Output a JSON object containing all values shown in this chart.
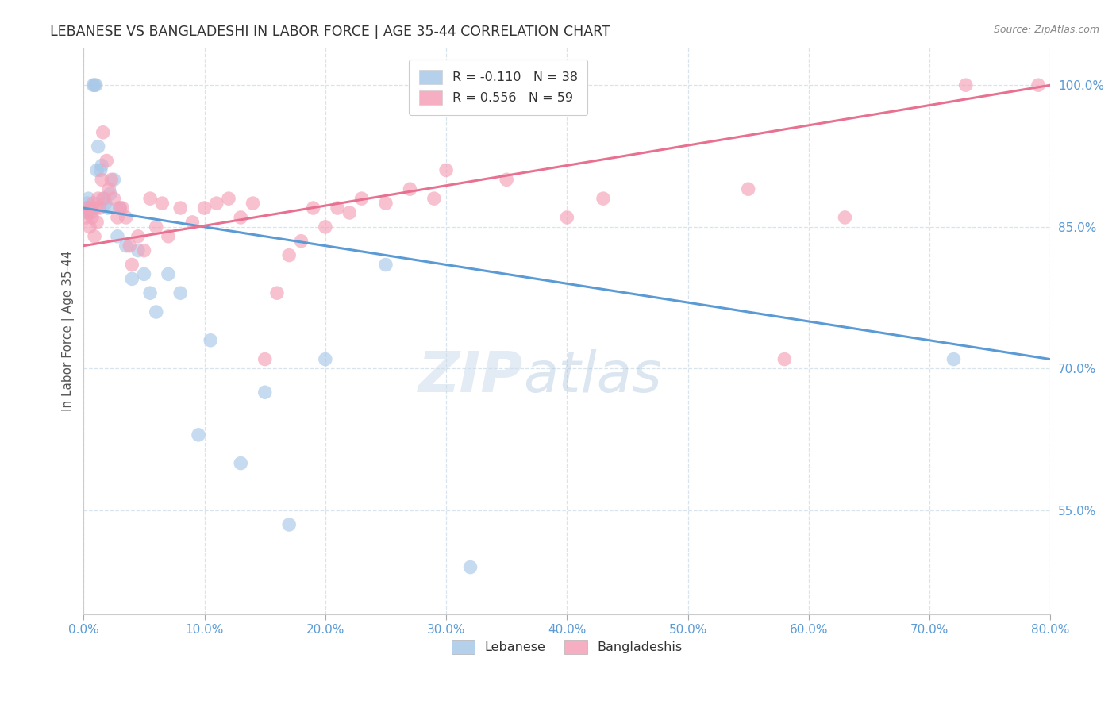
{
  "title": "LEBANESE VS BANGLADESHI IN LABOR FORCE | AGE 35-44 CORRELATION CHART",
  "source": "Source: ZipAtlas.com",
  "ylabel": "In Labor Force | Age 35-44",
  "watermark_zip": "ZIP",
  "watermark_atlas": "atlas",
  "xlim": [
    0.0,
    80.0
  ],
  "ylim": [
    44.0,
    104.0
  ],
  "blue_color": "#a8c8e8",
  "pink_color": "#f4a0b8",
  "blue_line_color": "#5b9bd5",
  "pink_line_color": "#e87090",
  "background_color": "#ffffff",
  "grid_color": "#d8e4ec",
  "blue_line_x0": 0.0,
  "blue_line_y0": 87.0,
  "blue_line_x1": 80.0,
  "blue_line_y1": 71.0,
  "pink_line_x0": 0.0,
  "pink_line_y0": 83.0,
  "pink_line_x1": 80.0,
  "pink_line_y1": 100.0,
  "lebanese_x": [
    0.2,
    0.3,
    0.3,
    0.4,
    0.5,
    0.6,
    0.7,
    0.8,
    0.9,
    1.0,
    1.1,
    1.2,
    1.4,
    1.5,
    1.6,
    1.8,
    2.0,
    2.2,
    2.5,
    2.8,
    3.0,
    3.5,
    4.0,
    4.5,
    5.0,
    5.5,
    6.0,
    7.0,
    8.0,
    9.5,
    10.5,
    13.0,
    15.0,
    17.0,
    20.0,
    25.0,
    32.0,
    72.0
  ],
  "lebanese_y": [
    87.0,
    86.5,
    87.5,
    88.0,
    87.0,
    86.5,
    87.0,
    100.0,
    100.0,
    100.0,
    91.0,
    93.5,
    91.0,
    91.5,
    88.0,
    87.5,
    87.0,
    88.5,
    90.0,
    84.0,
    87.0,
    83.0,
    79.5,
    82.5,
    80.0,
    78.0,
    76.0,
    80.0,
    78.0,
    63.0,
    73.0,
    60.0,
    67.5,
    53.5,
    71.0,
    81.0,
    49.0,
    71.0
  ],
  "bangladeshi_x": [
    0.2,
    0.3,
    0.4,
    0.5,
    0.6,
    0.7,
    0.8,
    0.9,
    1.0,
    1.1,
    1.2,
    1.3,
    1.5,
    1.6,
    1.7,
    1.9,
    2.1,
    2.3,
    2.5,
    2.8,
    3.0,
    3.2,
    3.5,
    3.8,
    4.0,
    4.5,
    5.0,
    5.5,
    6.0,
    6.5,
    7.0,
    8.0,
    9.0,
    10.0,
    11.0,
    12.0,
    13.0,
    14.0,
    15.0,
    16.0,
    17.0,
    18.0,
    19.0,
    20.0,
    21.0,
    22.0,
    23.0,
    25.0,
    27.0,
    29.0,
    30.0,
    35.0,
    40.0,
    43.0,
    55.0,
    58.0,
    63.0,
    73.0,
    79.0
  ],
  "bangladeshi_y": [
    86.0,
    87.0,
    86.5,
    85.0,
    87.0,
    86.0,
    87.5,
    84.0,
    87.0,
    85.5,
    88.0,
    87.0,
    90.0,
    95.0,
    88.0,
    92.0,
    89.0,
    90.0,
    88.0,
    86.0,
    87.0,
    87.0,
    86.0,
    83.0,
    81.0,
    84.0,
    82.5,
    88.0,
    85.0,
    87.5,
    84.0,
    87.0,
    85.5,
    87.0,
    87.5,
    88.0,
    86.0,
    87.5,
    71.0,
    78.0,
    82.0,
    83.5,
    87.0,
    85.0,
    87.0,
    86.5,
    88.0,
    87.5,
    89.0,
    88.0,
    91.0,
    90.0,
    86.0,
    88.0,
    89.0,
    71.0,
    86.0,
    100.0,
    100.0
  ]
}
